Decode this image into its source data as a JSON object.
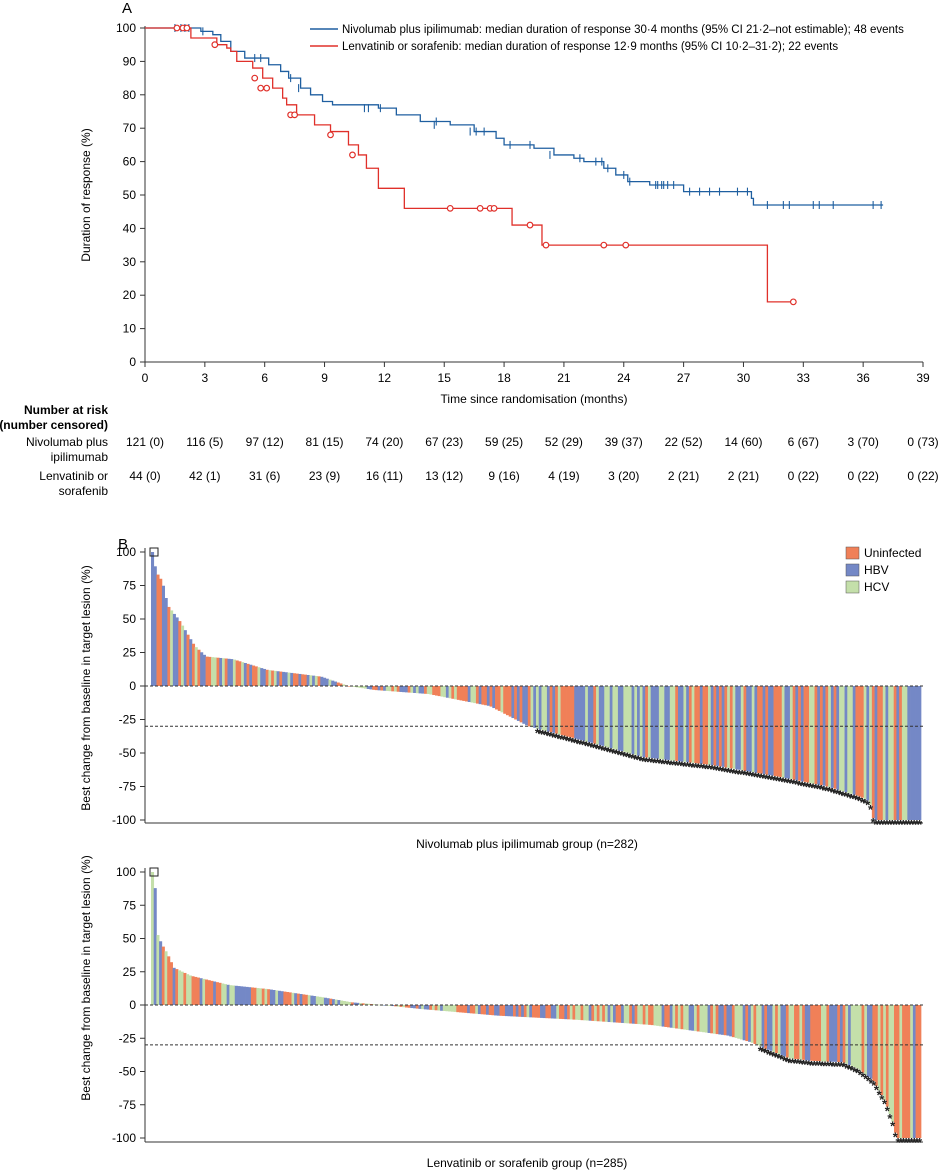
{
  "chart_data": [
    {
      "panel": "A",
      "type": "line",
      "ylabel": "Duration of response (%)",
      "xlabel": "Time since randomisation (months)",
      "xlim": [
        0,
        39
      ],
      "ylim": [
        0,
        100
      ],
      "xticks": [
        0,
        3,
        6,
        9,
        12,
        15,
        18,
        21,
        24,
        27,
        30,
        33,
        36,
        39
      ],
      "yticks": [
        0,
        10,
        20,
        30,
        40,
        50,
        60,
        70,
        80,
        90,
        100
      ],
      "legend_position": "top-right",
      "series": [
        {
          "name": "Nivolumab plus ipilimumab: median duration of response 30·4 months (95% CI 21·2–not estimable); 48 events",
          "color": "#1f5fa0",
          "marker": "tick",
          "steps": [
            [
              0,
              100
            ],
            [
              2.8,
              99
            ],
            [
              3.4,
              98
            ],
            [
              3.8,
              96
            ],
            [
              4.3,
              93
            ],
            [
              5,
              91
            ],
            [
              6.2,
              89
            ],
            [
              6.8,
              87
            ],
            [
              7.2,
              85
            ],
            [
              7.8,
              82
            ],
            [
              8.3,
              80
            ],
            [
              8.9,
              78
            ],
            [
              9.4,
              77
            ],
            [
              11.7,
              76
            ],
            [
              12.6,
              74
            ],
            [
              13.8,
              72
            ],
            [
              15.3,
              71
            ],
            [
              16.5,
              69
            ],
            [
              17.6,
              67
            ],
            [
              18,
              65
            ],
            [
              19.5,
              64
            ],
            [
              20.5,
              62
            ],
            [
              21.5,
              61
            ],
            [
              22,
              60
            ],
            [
              23,
              58
            ],
            [
              23.6,
              56
            ],
            [
              24.2,
              54
            ],
            [
              25.3,
              53
            ],
            [
              27,
              51
            ],
            [
              30.4,
              49
            ],
            [
              30.5,
              47
            ]
          ],
          "end_x": 37,
          "censored": [
            [
              1.5,
              100
            ],
            [
              1.8,
              100
            ],
            [
              2,
              100
            ],
            [
              2.2,
              100
            ],
            [
              2.9,
              99
            ],
            [
              5.5,
              91
            ],
            [
              5.8,
              91
            ],
            [
              7.3,
              85
            ],
            [
              7.7,
              82
            ],
            [
              11,
              76
            ],
            [
              11.2,
              76
            ],
            [
              11.8,
              76
            ],
            [
              14.5,
              71
            ],
            [
              14.6,
              72
            ],
            [
              16.3,
              69
            ],
            [
              16.6,
              69
            ],
            [
              17,
              69
            ],
            [
              18.3,
              65
            ],
            [
              19.3,
              65
            ],
            [
              20.3,
              62
            ],
            [
              21.8,
              61
            ],
            [
              22.6,
              60
            ],
            [
              22.9,
              60
            ],
            [
              23.2,
              58
            ],
            [
              24,
              56
            ],
            [
              24.3,
              54
            ],
            [
              25.6,
              53
            ],
            [
              25.7,
              53
            ],
            [
              25.9,
              53
            ],
            [
              26,
              53
            ],
            [
              26.2,
              53
            ],
            [
              26.5,
              53
            ],
            [
              27.3,
              51
            ],
            [
              27.8,
              51
            ],
            [
              28.3,
              51
            ],
            [
              28.8,
              51
            ],
            [
              29.7,
              51
            ],
            [
              30.2,
              51
            ],
            [
              31.2,
              47
            ],
            [
              32,
              47
            ],
            [
              32.3,
              47
            ],
            [
              33.5,
              47
            ],
            [
              33.8,
              47
            ],
            [
              34.5,
              47
            ],
            [
              36.5,
              47
            ],
            [
              36.9,
              47
            ]
          ]
        },
        {
          "name": "Lenvatinib or sorafenib: median duration of response 12·9 months (95% CI 10·2–31·2); 22 events",
          "color": "#e0302a",
          "marker": "circle",
          "steps": [
            [
              0,
              100
            ],
            [
              2.3,
              97
            ],
            [
              3.6,
              95
            ],
            [
              4.1,
              94
            ],
            [
              4.3,
              93
            ],
            [
              4.6,
              90
            ],
            [
              5.4,
              88
            ],
            [
              5.9,
              85
            ],
            [
              6.4,
              82
            ],
            [
              6.9,
              79
            ],
            [
              7.1,
              77
            ],
            [
              7.6,
              74
            ],
            [
              8.5,
              71
            ],
            [
              9.3,
              69
            ],
            [
              10.2,
              65
            ],
            [
              10.7,
              62
            ],
            [
              11.1,
              58
            ],
            [
              11.7,
              52
            ],
            [
              13,
              46
            ],
            [
              18.4,
              41
            ],
            [
              19.9,
              35
            ],
            [
              31.2,
              18
            ]
          ],
          "end_x": 32.5,
          "censored": [
            [
              1.6,
              100
            ],
            [
              1.9,
              100
            ],
            [
              2.1,
              100
            ],
            [
              3.5,
              95
            ],
            [
              5.5,
              85
            ],
            [
              5.8,
              82
            ],
            [
              6.1,
              82
            ],
            [
              7.3,
              74
            ],
            [
              7.5,
              74
            ],
            [
              9.3,
              68
            ],
            [
              10.4,
              62
            ],
            [
              15.3,
              46
            ],
            [
              16.8,
              46
            ],
            [
              17.3,
              46
            ],
            [
              17.5,
              46
            ],
            [
              19.3,
              41
            ],
            [
              20.1,
              35
            ],
            [
              23,
              35
            ],
            [
              24.1,
              35
            ],
            [
              32.5,
              18
            ]
          ]
        }
      ],
      "risk_table": {
        "title_line1": "Number at risk",
        "title_line2": "(number censored)",
        "times": [
          0,
          3,
          6,
          9,
          12,
          15,
          18,
          21,
          24,
          27,
          30,
          33,
          36,
          39
        ],
        "rows": [
          {
            "label_line1": "Nivolumab plus",
            "label_line2": "ipilimumab",
            "values": [
              "121 (0)",
              "116 (5)",
              "97 (12)",
              "81 (15)",
              "74 (20)",
              "67 (23)",
              "59 (25)",
              "52 (29)",
              "39 (37)",
              "22 (52)",
              "14 (60)",
              "6 (67)",
              "3 (70)",
              "0 (73)"
            ]
          },
          {
            "label_line1": "Lenvatinib or",
            "label_line2": "sorafenib",
            "values": [
              "44 (0)",
              "42 (1)",
              "31 (6)",
              "23 (9)",
              "16 (11)",
              "13 (12)",
              "9 (16)",
              "4 (19)",
              "3 (20)",
              "2 (21)",
              "2 (21)",
              "0 (22)",
              "0 (22)",
              "0 (22)"
            ]
          }
        ]
      }
    },
    {
      "panel": "B",
      "type": "bar",
      "subtype": "waterfall",
      "ylabel": "Best change from baseline in target lesion (%)",
      "xlabel": "Nivolumab plus ipilimumab group (n=282)",
      "n": 282,
      "ylim": [
        -100,
        100
      ],
      "yticks": [
        100,
        75,
        50,
        25,
        0,
        -25,
        -50,
        -75,
        -100
      ],
      "reference_line": -30,
      "legend_position": "top-right",
      "legend": [
        {
          "name": "Uninfected",
          "color": "#f08058"
        },
        {
          "name": "HBV",
          "color": "#7488c6"
        },
        {
          "name": "HCV",
          "color": "#c4dfaa"
        }
      ],
      "truncated_marker": "□",
      "asterisk_marker": "*",
      "values_profile": [
        [
          0,
          100
        ],
        [
          0.5,
          85
        ],
        [
          1.3,
          78
        ],
        [
          2,
          60
        ],
        [
          3.5,
          49
        ],
        [
          5.5,
          30
        ],
        [
          7,
          22
        ],
        [
          10.5,
          20
        ],
        [
          15,
          12
        ],
        [
          22,
          7
        ],
        [
          25.5,
          0
        ],
        [
          29,
          -3
        ],
        [
          36,
          -6
        ],
        [
          44,
          -15
        ],
        [
          49,
          -30
        ],
        [
          57,
          -42
        ],
        [
          64,
          -53
        ],
        [
          73,
          -59
        ],
        [
          82,
          -68
        ],
        [
          88,
          -75
        ],
        [
          92,
          -82
        ],
        [
          93.5,
          -86
        ],
        [
          94,
          -100
        ],
        [
          100,
          -100
        ]
      ],
      "asterisk_range": [
        0.5,
        1
      ]
    },
    {
      "panel": "B",
      "type": "bar",
      "subtype": "waterfall",
      "ylabel": "Best change from baseline in target lesion (%)",
      "xlabel": "Lenvatinib or sorafenib group (n=285)",
      "n": 285,
      "ylim": [
        -100,
        100
      ],
      "yticks": [
        100,
        75,
        50,
        25,
        0,
        -25,
        -50,
        -75,
        -100
      ],
      "reference_line": -30,
      "truncated_marker": "□",
      "asterisk_marker": "*",
      "values_profile": [
        [
          0,
          100
        ],
        [
          0.3,
          95
        ],
        [
          0.6,
          54
        ],
        [
          1.2,
          46
        ],
        [
          2,
          38
        ],
        [
          2.8,
          28
        ],
        [
          5,
          22
        ],
        [
          10,
          15
        ],
        [
          15,
          12
        ],
        [
          22,
          6
        ],
        [
          26,
          2
        ],
        [
          30,
          0
        ],
        [
          35,
          -3
        ],
        [
          45,
          -8
        ],
        [
          55,
          -11
        ],
        [
          65,
          -15
        ],
        [
          75,
          -23
        ],
        [
          78,
          -28
        ],
        [
          80,
          -33
        ],
        [
          83,
          -40
        ],
        [
          86,
          -42
        ],
        [
          90,
          -43
        ],
        [
          92,
          -48
        ],
        [
          94,
          -57
        ],
        [
          95.5,
          -72
        ],
        [
          96.5,
          -88
        ],
        [
          97,
          -100
        ],
        [
          100,
          -100
        ]
      ],
      "asterisk_range": [
        0.79,
        1
      ]
    }
  ]
}
